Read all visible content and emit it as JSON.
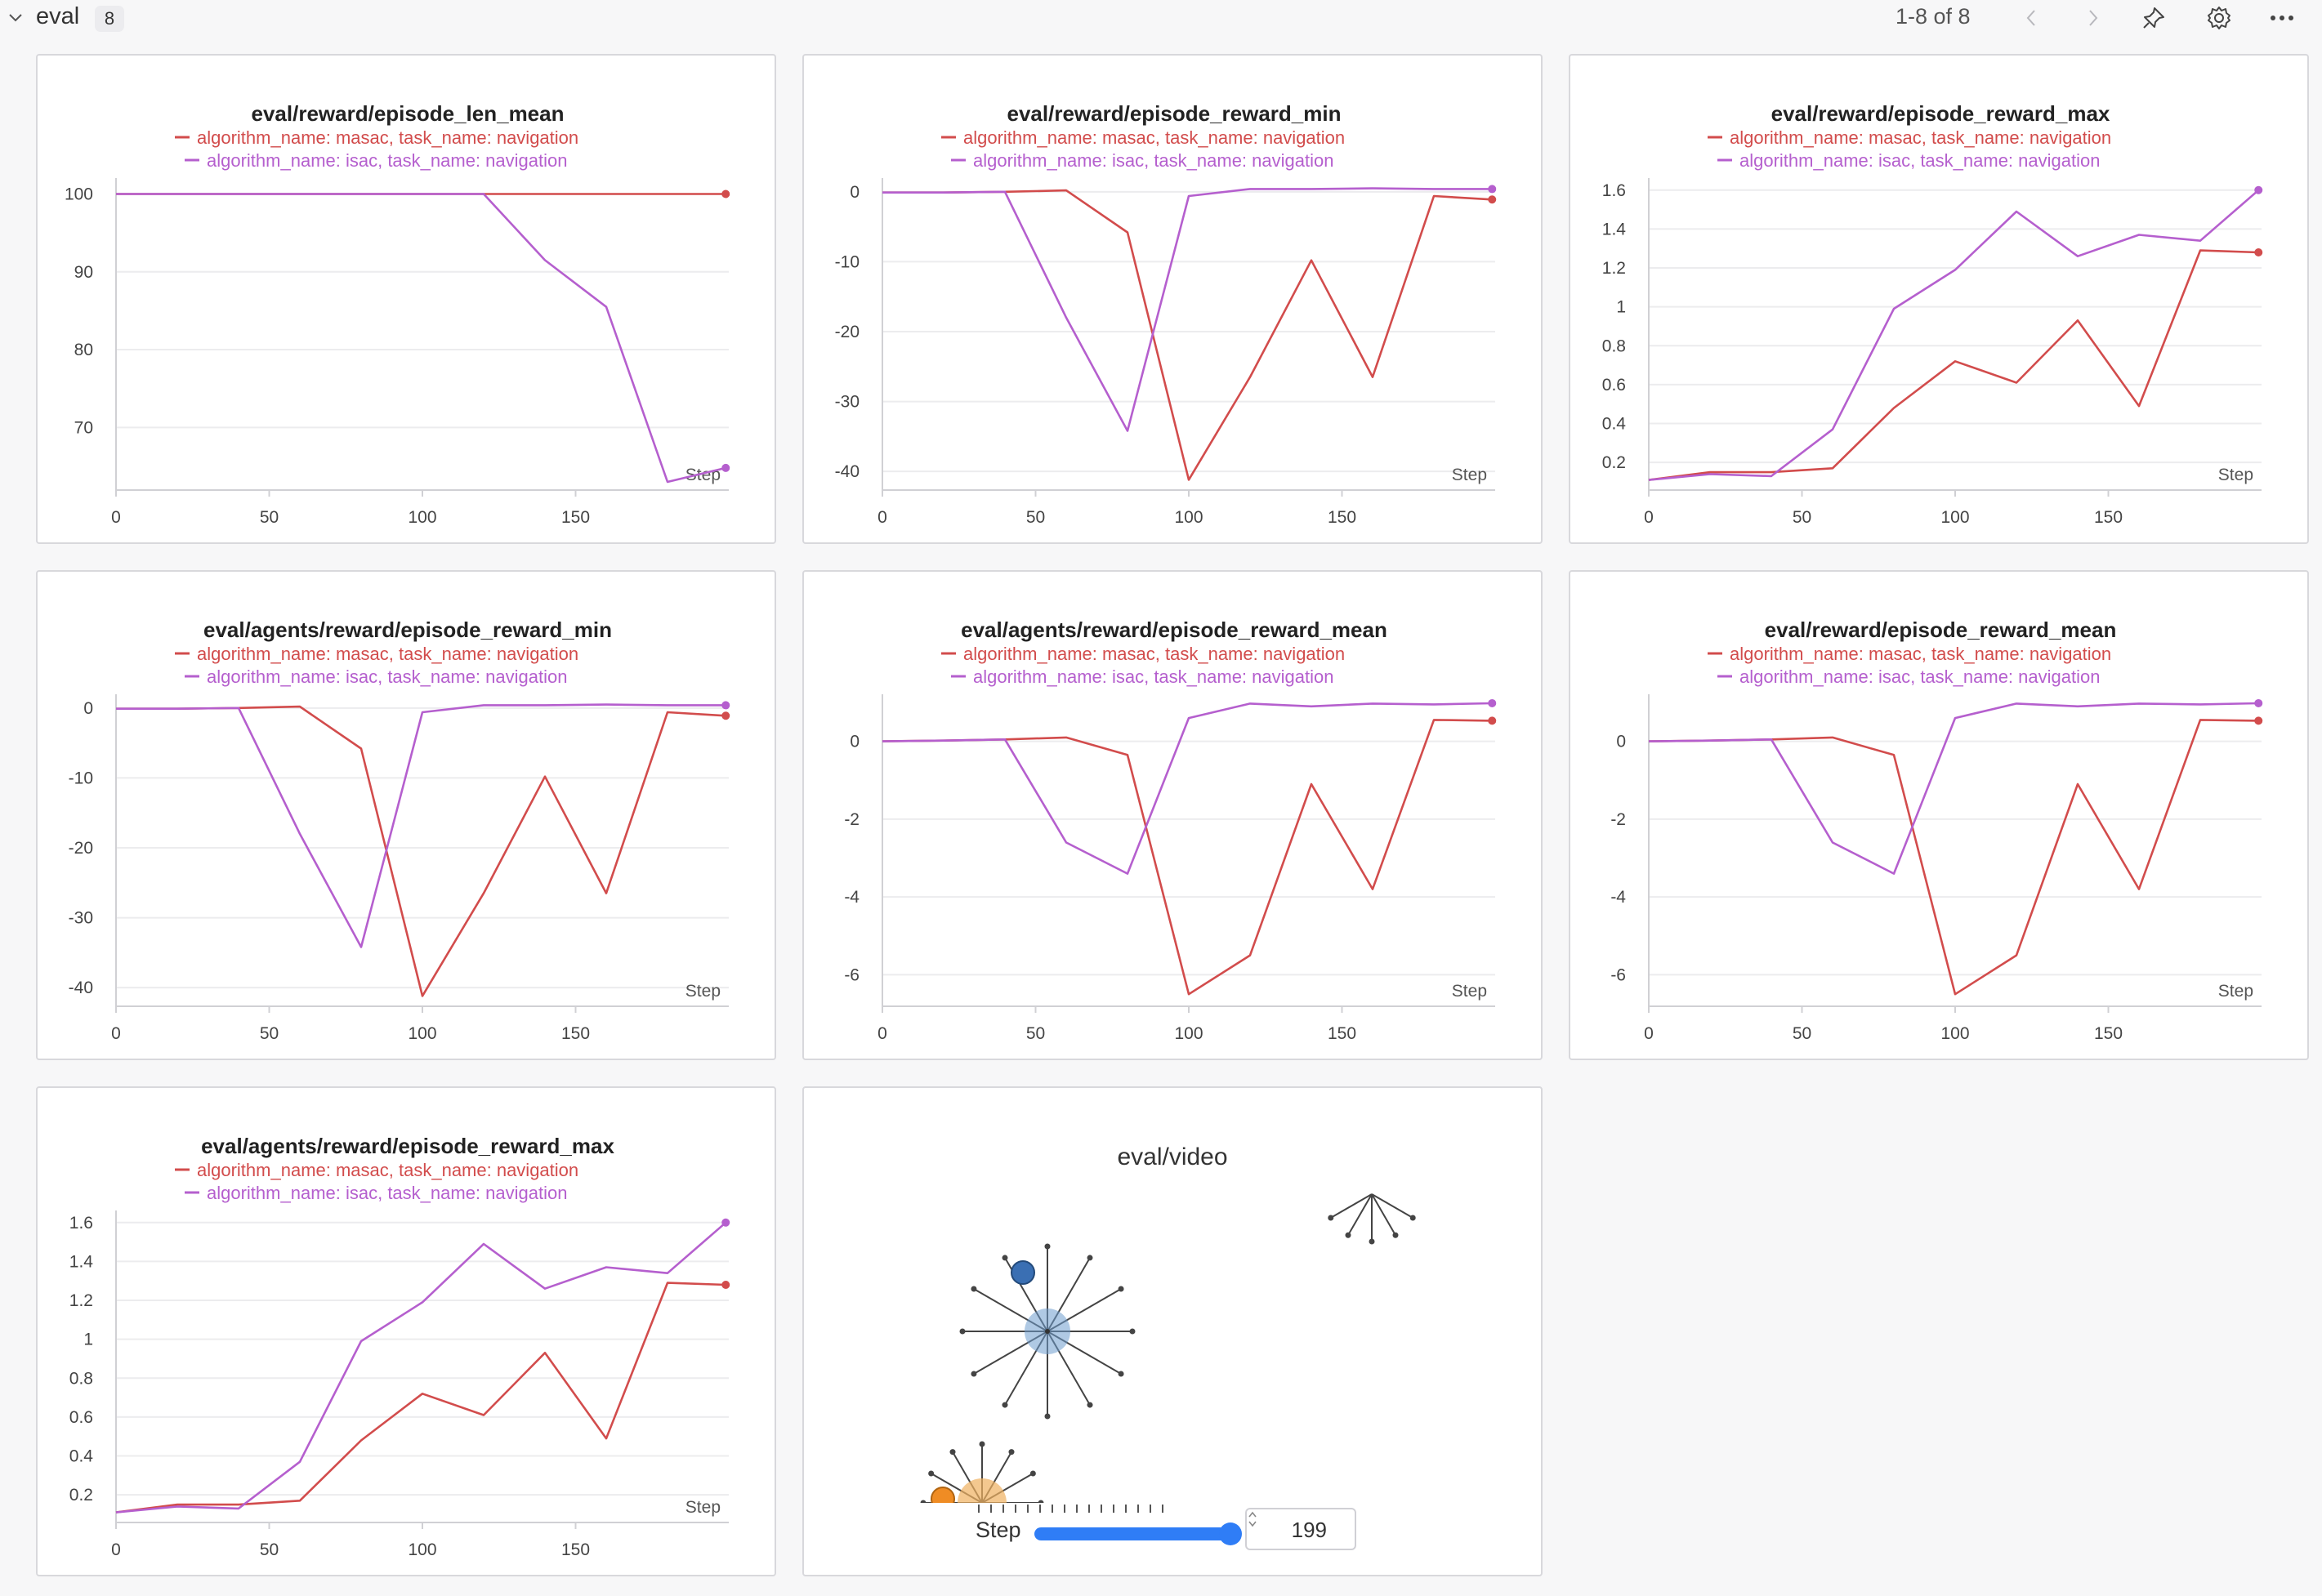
{
  "section": {
    "title": "eval",
    "count": "8",
    "pager": "1-8 of 8"
  },
  "icons": [
    "chevron-down-icon",
    "chevron-left-icon",
    "chevron-right-icon",
    "pin-icon",
    "gear-icon",
    "more-icon"
  ],
  "colors": {
    "masac": "#d24c4c",
    "isac": "#b55fce"
  },
  "chart_data": [
    {
      "type": "line",
      "title": "eval/reward/episode_len_mean",
      "xlabel": "Step",
      "xlim": [
        0,
        200
      ],
      "ylim": [
        63,
        101
      ],
      "xticks": [
        0,
        50,
        100,
        150
      ],
      "yticks": [
        70,
        80,
        90,
        100
      ],
      "ytick_labels": [
        "70",
        "80",
        "90",
        "100"
      ],
      "series": [
        {
          "name": "algorithm_name: masac, task_name: navigation",
          "color": "#d24c4c",
          "x": [
            0,
            20,
            40,
            60,
            80,
            100,
            120,
            140,
            160,
            180,
            199
          ],
          "y": [
            100,
            100,
            100,
            100,
            100,
            100,
            100,
            100,
            100,
            100,
            100
          ]
        },
        {
          "name": "algorithm_name: isac, task_name: navigation",
          "color": "#b55fce",
          "x": [
            0,
            20,
            40,
            60,
            80,
            100,
            120,
            140,
            160,
            180,
            199
          ],
          "y": [
            100,
            100,
            100,
            100,
            100,
            100,
            100,
            91.5,
            85.5,
            63,
            64.8
          ]
        }
      ]
    },
    {
      "type": "line",
      "title": "eval/reward/episode_reward_min",
      "xlabel": "Step",
      "xlim": [
        0,
        200
      ],
      "ylim": [
        -41.5,
        0.8
      ],
      "xticks": [
        0,
        50,
        100,
        150
      ],
      "yticks": [
        -40,
        -30,
        -20,
        -10,
        0
      ],
      "ytick_labels": [
        "-40",
        "-30",
        "-20",
        "-10",
        "0"
      ],
      "series": [
        {
          "name": "algorithm_name: masac, task_name: navigation",
          "color": "#d24c4c",
          "x": [
            0,
            20,
            40,
            60,
            80,
            100,
            120,
            140,
            160,
            180,
            199
          ],
          "y": [
            -0.1,
            -0.1,
            0,
            0.2,
            -5.8,
            -41.2,
            -26.5,
            -9.8,
            -26.5,
            -0.6,
            -1.1
          ]
        },
        {
          "name": "algorithm_name: isac, task_name: navigation",
          "color": "#b55fce",
          "x": [
            0,
            20,
            40,
            60,
            80,
            100,
            120,
            140,
            160,
            180,
            199
          ],
          "y": [
            -0.1,
            -0.1,
            0,
            -18,
            -34.2,
            -0.6,
            0.4,
            0.4,
            0.5,
            0.4,
            0.4
          ]
        }
      ]
    },
    {
      "type": "line",
      "title": "eval/reward/episode_reward_max",
      "xlabel": "Step",
      "xlim": [
        0,
        200
      ],
      "ylim": [
        0.1,
        1.62
      ],
      "xticks": [
        0,
        50,
        100,
        150
      ],
      "yticks": [
        0.2,
        0.4,
        0.6,
        0.8,
        1,
        1.2,
        1.4,
        1.6
      ],
      "ytick_labels": [
        "0.2",
        "0.4",
        "0.6",
        "0.8",
        "1",
        "1.2",
        "1.4",
        "1.6"
      ],
      "series": [
        {
          "name": "algorithm_name: masac, task_name: navigation",
          "color": "#d24c4c",
          "x": [
            0,
            20,
            40,
            60,
            80,
            100,
            120,
            140,
            160,
            180,
            199
          ],
          "y": [
            0.11,
            0.15,
            0.15,
            0.17,
            0.48,
            0.72,
            0.61,
            0.93,
            0.49,
            1.29,
            1.28
          ]
        },
        {
          "name": "algorithm_name: isac, task_name: navigation",
          "color": "#b55fce",
          "x": [
            0,
            20,
            40,
            60,
            80,
            100,
            120,
            140,
            160,
            180,
            199
          ],
          "y": [
            0.11,
            0.14,
            0.13,
            0.37,
            0.99,
            1.19,
            1.49,
            1.26,
            1.37,
            1.34,
            1.6
          ]
        }
      ]
    },
    {
      "type": "line",
      "title": "eval/agents/reward/episode_reward_min",
      "xlabel": "Step",
      "xlim": [
        0,
        200
      ],
      "ylim": [
        -41.5,
        0.8
      ],
      "xticks": [
        0,
        50,
        100,
        150
      ],
      "yticks": [
        -40,
        -30,
        -20,
        -10,
        0
      ],
      "ytick_labels": [
        "-40",
        "-30",
        "-20",
        "-10",
        "0"
      ],
      "series": [
        {
          "name": "algorithm_name: masac, task_name: navigation",
          "color": "#d24c4c",
          "x": [
            0,
            20,
            40,
            60,
            80,
            100,
            120,
            140,
            160,
            180,
            199
          ],
          "y": [
            -0.1,
            -0.1,
            0,
            0.2,
            -5.8,
            -41.2,
            -26.5,
            -9.8,
            -26.5,
            -0.6,
            -1.1
          ]
        },
        {
          "name": "algorithm_name: isac, task_name: navigation",
          "color": "#b55fce",
          "x": [
            0,
            20,
            40,
            60,
            80,
            100,
            120,
            140,
            160,
            180,
            199
          ],
          "y": [
            -0.1,
            -0.1,
            0,
            -18,
            -34.2,
            -0.6,
            0.4,
            0.4,
            0.5,
            0.4,
            0.4
          ]
        }
      ]
    },
    {
      "type": "line",
      "title": "eval/agents/reward/episode_reward_mean",
      "xlabel": "Step",
      "xlim": [
        0,
        200
      ],
      "ylim": [
        -6.6,
        1
      ],
      "xticks": [
        0,
        50,
        100,
        150
      ],
      "yticks": [
        -6,
        -4,
        -2,
        0
      ],
      "ytick_labels": [
        "-6",
        "-4",
        "-2",
        "0"
      ],
      "series": [
        {
          "name": "algorithm_name: masac, task_name: navigation",
          "color": "#d24c4c",
          "x": [
            0,
            20,
            40,
            60,
            80,
            100,
            120,
            140,
            160,
            180,
            199
          ],
          "y": [
            0,
            0.02,
            0.05,
            0.1,
            -0.35,
            -6.5,
            -5.5,
            -1.1,
            -3.8,
            0.55,
            0.53
          ]
        },
        {
          "name": "algorithm_name: isac, task_name: navigation",
          "color": "#b55fce",
          "x": [
            0,
            20,
            40,
            60,
            80,
            100,
            120,
            140,
            160,
            180,
            199
          ],
          "y": [
            0,
            0.02,
            0.05,
            -2.6,
            -3.4,
            0.6,
            0.97,
            0.9,
            0.97,
            0.95,
            0.98
          ]
        }
      ]
    },
    {
      "type": "line",
      "title": "eval/reward/episode_reward_mean",
      "xlabel": "Step",
      "xlim": [
        0,
        200
      ],
      "ylim": [
        -6.6,
        1
      ],
      "xticks": [
        0,
        50,
        100,
        150
      ],
      "yticks": [
        -6,
        -4,
        -2,
        0
      ],
      "ytick_labels": [
        "-6",
        "-4",
        "-2",
        "0"
      ],
      "series": [
        {
          "name": "algorithm_name: masac, task_name: navigation",
          "color": "#d24c4c",
          "x": [
            0,
            20,
            40,
            60,
            80,
            100,
            120,
            140,
            160,
            180,
            199
          ],
          "y": [
            0,
            0.02,
            0.05,
            0.1,
            -0.35,
            -6.5,
            -5.5,
            -1.1,
            -3.8,
            0.55,
            0.53
          ]
        },
        {
          "name": "algorithm_name: isac, task_name: navigation",
          "color": "#b55fce",
          "x": [
            0,
            20,
            40,
            60,
            80,
            100,
            120,
            140,
            160,
            180,
            199
          ],
          "y": [
            0,
            0.02,
            0.05,
            -2.6,
            -3.4,
            0.6,
            0.97,
            0.9,
            0.97,
            0.95,
            0.98
          ]
        }
      ]
    },
    {
      "type": "line",
      "title": "eval/agents/reward/episode_reward_max",
      "xlabel": "Step",
      "xlim": [
        0,
        200
      ],
      "ylim": [
        0.1,
        1.62
      ],
      "xticks": [
        0,
        50,
        100,
        150
      ],
      "yticks": [
        0.2,
        0.4,
        0.6,
        0.8,
        1,
        1.2,
        1.4,
        1.6
      ],
      "ytick_labels": [
        "0.2",
        "0.4",
        "0.6",
        "0.8",
        "1",
        "1.2",
        "1.4",
        "1.6"
      ],
      "series": [
        {
          "name": "algorithm_name: masac, task_name: navigation",
          "color": "#d24c4c",
          "x": [
            0,
            20,
            40,
            60,
            80,
            100,
            120,
            140,
            160,
            180,
            199
          ],
          "y": [
            0.11,
            0.15,
            0.15,
            0.17,
            0.48,
            0.72,
            0.61,
            0.93,
            0.49,
            1.29,
            1.28
          ]
        },
        {
          "name": "algorithm_name: isac, task_name: navigation",
          "color": "#b55fce",
          "x": [
            0,
            20,
            40,
            60,
            80,
            100,
            120,
            140,
            160,
            180,
            199
          ],
          "y": [
            0.11,
            0.14,
            0.13,
            0.37,
            0.99,
            1.19,
            1.49,
            1.26,
            1.37,
            1.34,
            1.6
          ]
        }
      ]
    }
  ],
  "video": {
    "title": "eval/video",
    "step_label": "Step",
    "step_value": "199"
  }
}
